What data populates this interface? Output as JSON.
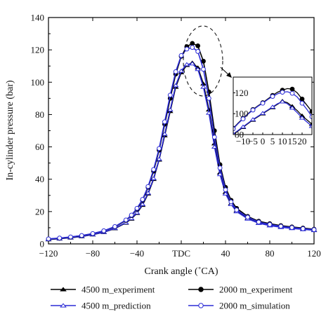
{
  "chart_data": {
    "type": "line",
    "xlabel": "Crank angle (˚CA)",
    "ylabel": "In-cylinder pressure (bar)",
    "xlim": [
      -120,
      120
    ],
    "ylim": [
      0,
      140
    ],
    "x_ticks": [
      {
        "value": -120,
        "label": "−120"
      },
      {
        "value": -80,
        "label": "−80"
      },
      {
        "value": -40,
        "label": "−40"
      },
      {
        "value": 0,
        "label": "TDC"
      },
      {
        "value": 40,
        "label": "40"
      },
      {
        "value": 80,
        "label": "80"
      },
      {
        "value": 120,
        "label": "120"
      }
    ],
    "y_ticks": [
      {
        "value": 0,
        "label": "0"
      },
      {
        "value": 20,
        "label": "20"
      },
      {
        "value": 40,
        "label": "40"
      },
      {
        "value": 60,
        "label": "60"
      },
      {
        "value": 80,
        "label": "80"
      },
      {
        "value": 100,
        "label": "100"
      },
      {
        "value": 120,
        "label": "120"
      },
      {
        "value": 140,
        "label": "140"
      }
    ],
    "legend_position": "bottom",
    "x": [
      -120,
      -110,
      -100,
      -90,
      -80,
      -70,
      -60,
      -50,
      -45,
      -40,
      -35,
      -30,
      -25,
      -20,
      -15,
      -10,
      -5,
      0,
      5,
      10,
      15,
      20,
      25,
      30,
      35,
      40,
      45,
      50,
      60,
      70,
      80,
      90,
      100,
      110,
      120
    ],
    "series": [
      {
        "name": "4500 m_experiment",
        "color": "#000000",
        "marker": "filled-triangle",
        "values": [
          2.7,
          3.2,
          3.8,
          4.6,
          5.7,
          7.2,
          9.5,
          13,
          15.5,
          19,
          24,
          31,
          40,
          52,
          67,
          82,
          97,
          106,
          110.5,
          112,
          109,
          99,
          83,
          62,
          44,
          32,
          25,
          20.5,
          16,
          13,
          11.5,
          10.5,
          9.8,
          9.2,
          8.6
        ]
      },
      {
        "name": "4500 m_prediction",
        "color": "#2b2bd6",
        "marker": "open-triangle",
        "values": [
          2.8,
          3.3,
          3.9,
          4.7,
          5.8,
          7.3,
          9.7,
          13.2,
          15.8,
          19.3,
          24.5,
          31.5,
          40.5,
          52.5,
          68,
          83,
          98,
          107,
          111,
          111.5,
          108,
          97,
          81,
          60,
          43,
          31,
          24.5,
          20,
          15.5,
          12.8,
          11.3,
          10.3,
          9.6,
          9,
          8.4
        ]
      },
      {
        "name": "2000 m_experiment",
        "color": "#000000",
        "marker": "filled-circle",
        "values": [
          3,
          3.5,
          4.2,
          5.1,
          6.3,
          8,
          10.5,
          14.5,
          17.5,
          21.5,
          27,
          35,
          45,
          58,
          74,
          90,
          105,
          116,
          122,
          124,
          122.5,
          113,
          94,
          70,
          49,
          35,
          27,
          22,
          17,
          14,
          12.5,
          11.3,
          10.5,
          9.8,
          9.1
        ]
      },
      {
        "name": "2000 m_simulation",
        "color": "#2b2bd6",
        "marker": "open-circle",
        "values": [
          3.1,
          3.6,
          4.3,
          5.2,
          6.4,
          8.1,
          10.7,
          14.8,
          17.8,
          22,
          27.5,
          35.5,
          46,
          59,
          75.5,
          92,
          106.5,
          116.5,
          120.5,
          121.5,
          119,
          108,
          90,
          66,
          47,
          33.5,
          26,
          21,
          16.5,
          13.5,
          12,
          10.9,
          10.1,
          9.4,
          8.8
        ]
      }
    ],
    "inset": {
      "xlim": [
        -15,
        25
      ],
      "ylim": [
        80,
        135
      ],
      "x_ticks": [
        {
          "value": -10,
          "label": "−10"
        },
        {
          "value": -5,
          "label": "−5"
        },
        {
          "value": 0,
          "label": "0"
        },
        {
          "value": 5,
          "label": "5"
        },
        {
          "value": 10,
          "label": "10"
        },
        {
          "value": 15,
          "label": "15"
        },
        {
          "value": 20,
          "label": "20"
        }
      ],
      "y_ticks": [
        {
          "value": 80,
          "label": "80"
        },
        {
          "value": 100,
          "label": "100"
        },
        {
          "value": 120,
          "label": "120"
        }
      ],
      "x": [
        -15,
        -12.5,
        -10,
        -7.5,
        -5,
        -2.5,
        0,
        2.5,
        5,
        7.5,
        10,
        12.5,
        15,
        17.5,
        20,
        22.5,
        25
      ],
      "series": [
        {
          "values": [
            80,
            83.5,
            87,
            90.5,
            94,
            97,
            100,
            103,
            106,
            109,
            112,
            110.5,
            107,
            103,
            98,
            94,
            90
          ]
        },
        {
          "values": [
            80.5,
            84,
            87.5,
            91,
            94.5,
            97.5,
            100.5,
            103.5,
            106.5,
            109.5,
            111.5,
            109.5,
            105.5,
            101,
            96,
            92,
            88
          ]
        },
        {
          "values": [
            86,
            91,
            95.5,
            100,
            104,
            107.5,
            110.5,
            114,
            117.5,
            120.5,
            122.5,
            124,
            123.5,
            120,
            114,
            108,
            102
          ]
        },
        {
          "values": [
            85.5,
            90.5,
            95,
            99.5,
            103.5,
            107,
            110,
            113.5,
            116.5,
            119,
            120.5,
            121,
            119.5,
            116,
            110,
            104,
            97
          ]
        }
      ]
    }
  }
}
